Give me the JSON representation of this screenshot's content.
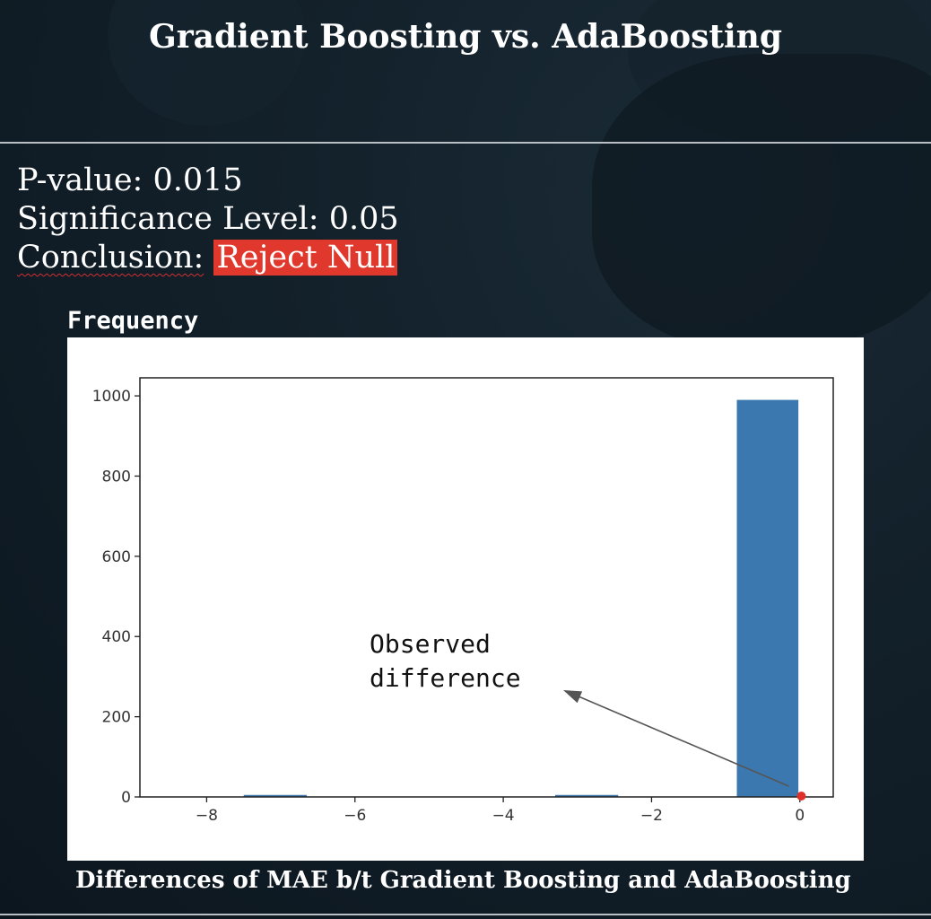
{
  "slide": {
    "title": "Gradient Boosting vs. AdaBoosting",
    "p_value_label": "P-value:",
    "p_value": "0.015",
    "significance_label": "Significance Level:",
    "significance": "0.05",
    "conclusion_label": "Conclusion:",
    "conclusion": "Reject Null",
    "caption": "Differences of MAE b/t Gradient Boosting and AdaBoosting"
  },
  "chart_data": {
    "type": "bar",
    "ylabel": "Frequency",
    "xlabel": "",
    "xlim": [
      -8.9,
      0.45
    ],
    "ylim": [
      0,
      1045
    ],
    "x_ticks": [
      -8,
      -6,
      -4,
      -2,
      0
    ],
    "x_tick_labels": [
      "−8",
      "−6",
      "−4",
      "−2",
      "0"
    ],
    "y_ticks": [
      0,
      200,
      400,
      600,
      800,
      1000
    ],
    "y_tick_labels": [
      "0",
      "200",
      "400",
      "600",
      "800",
      "1000"
    ],
    "bins": [
      {
        "x0": -7.5,
        "x1": -6.65,
        "count": 5
      },
      {
        "x0": -3.3,
        "x1": -2.45,
        "count": 5
      },
      {
        "x0": -0.85,
        "x1": -0.02,
        "count": 990
      }
    ],
    "bar_color": "#3c78b0",
    "observed_difference": {
      "x": 0.02,
      "y": 0,
      "color": "#e0302a"
    },
    "annotation": {
      "text_lines": [
        "Observed",
        "difference"
      ]
    },
    "grid": false
  }
}
